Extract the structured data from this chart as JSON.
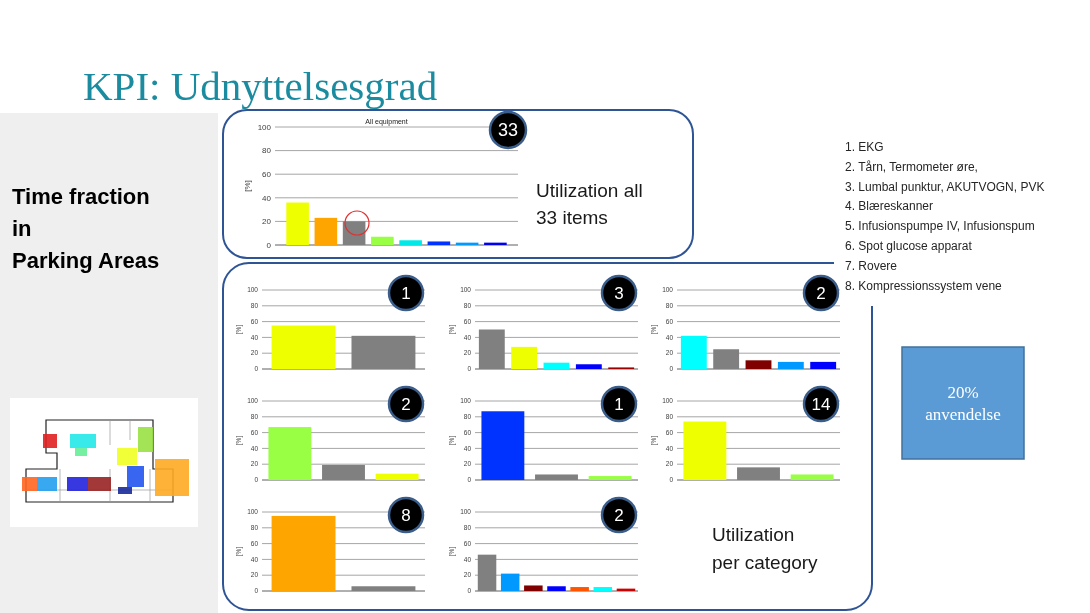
{
  "chart_data": [
    {
      "type": "other",
      "title": "KPI: Udnyttelsesgrad",
      "annotations": [
        "Time fraction\nin\nParking Areas",
        "Utilization all\n33 items",
        "1. EKG\n2. Tårn, Termometer øre,\n3. Lumbal punktur, AKUTVOGN, PVK\n4. Blæreskanner\n5. Infusionspumpe IV, Infusionspum\n6. Spot glucose apparat\n7. Rovere\n8. Kompressionssystem vene",
        "20%\nanvendelse",
        "Utilization\nper category"
      ]
    },
    {
      "type": "bar",
      "title": "All equipment",
      "categories": [
        null,
        null,
        null,
        null,
        null,
        null,
        null,
        null
      ],
      "values": [
        36,
        23,
        20,
        7,
        4,
        3,
        2,
        2
      ],
      "colors": [
        "#eeff00",
        "#ffa500",
        "#808080",
        "#99ff44",
        "#00e8e8",
        "#0033ff",
        "#0099ff",
        "#0000ee"
      ],
      "ylabel": "[%]",
      "ylim": [
        0,
        100
      ],
      "yticks": [
        0,
        20,
        40,
        60,
        80,
        100
      ],
      "grid": "y",
      "annotations": [
        "33"
      ]
    },
    {
      "type": "bar",
      "categories": [
        null,
        null
      ],
      "values": [
        55,
        42
      ],
      "colors": [
        "#eeff00",
        "#808080"
      ],
      "ylabel": "[%]",
      "ylim": [
        0,
        100
      ],
      "yticks": [
        0,
        20,
        40,
        60,
        80,
        100
      ],
      "grid": "y",
      "annotations": [
        "1"
      ]
    },
    {
      "type": "bar",
      "categories": [
        null,
        null,
        null,
        null,
        null
      ],
      "values": [
        50,
        28,
        8,
        6,
        2
      ],
      "colors": [
        "#808080",
        "#eeff00",
        "#00ffff",
        "#0000ff",
        "#990000"
      ],
      "ylabel": "[%]",
      "ylim": [
        0,
        100
      ],
      "yticks": [
        0,
        20,
        40,
        60,
        80,
        100
      ],
      "grid": "y",
      "annotations": [
        "3"
      ]
    },
    {
      "type": "bar",
      "categories": [
        null,
        null,
        null,
        null,
        null
      ],
      "values": [
        42,
        25,
        11,
        9,
        9
      ],
      "colors": [
        "#00ffff",
        "#808080",
        "#800000",
        "#0099ff",
        "#0000ff"
      ],
      "ylabel": "[%]",
      "ylim": [
        0,
        100
      ],
      "yticks": [
        0,
        20,
        40,
        60,
        80,
        100
      ],
      "grid": "y",
      "annotations": [
        "2"
      ]
    },
    {
      "type": "bar",
      "categories": [
        null,
        null,
        null
      ],
      "values": [
        67,
        19,
        8
      ],
      "colors": [
        "#99ff44",
        "#808080",
        "#eeff00"
      ],
      "ylabel": "[%]",
      "ylim": [
        0,
        100
      ],
      "yticks": [
        0,
        20,
        40,
        60,
        80,
        100
      ],
      "grid": "y",
      "annotations": [
        "2"
      ]
    },
    {
      "type": "bar",
      "categories": [
        null,
        null,
        null
      ],
      "values": [
        87,
        7,
        5
      ],
      "colors": [
        "#0033ff",
        "#808080",
        "#99ff44"
      ],
      "ylabel": "[%]",
      "ylim": [
        0,
        100
      ],
      "yticks": [
        0,
        20,
        40,
        60,
        80,
        100
      ],
      "grid": "y",
      "annotations": [
        "1"
      ]
    },
    {
      "type": "bar",
      "categories": [
        null,
        null,
        null
      ],
      "values": [
        74,
        16,
        7
      ],
      "colors": [
        "#eeff00",
        "#808080",
        "#99ff44"
      ],
      "ylabel": "[%]",
      "ylim": [
        0,
        100
      ],
      "yticks": [
        0,
        20,
        40,
        60,
        80,
        100
      ],
      "grid": "y",
      "annotations": [
        "14"
      ]
    },
    {
      "type": "bar",
      "categories": [
        null,
        null
      ],
      "values": [
        95,
        6
      ],
      "colors": [
        "#ffa500",
        "#808080"
      ],
      "ylabel": "[%]",
      "ylim": [
        0,
        100
      ],
      "yticks": [
        0,
        20,
        40,
        60,
        80,
        100
      ],
      "grid": "y",
      "annotations": [
        "8"
      ]
    },
    {
      "type": "bar",
      "categories": [
        null,
        null,
        null,
        null,
        null,
        null,
        null
      ],
      "values": [
        46,
        22,
        7,
        6,
        5,
        5,
        3
      ],
      "colors": [
        "#808080",
        "#0099ff",
        "#800000",
        "#0000ff",
        "#ff5500",
        "#00ffff",
        "#cc0000"
      ],
      "ylabel": "[%]",
      "ylim": [
        0,
        100
      ],
      "yticks": [
        0,
        20,
        40,
        60,
        80,
        100
      ],
      "grid": "y",
      "annotations": [
        "2"
      ]
    }
  ]
}
